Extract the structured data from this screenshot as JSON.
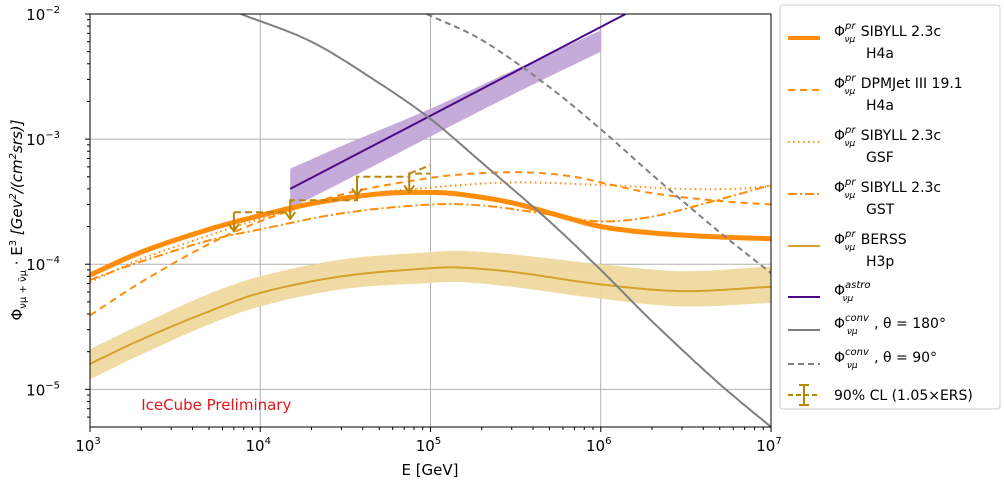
{
  "chart_data": {
    "type": "line",
    "title": "",
    "xlabel": "E [GeV]",
    "ylabel": {
      "prefix": "Φ",
      "sub": "νμ + ν̄μ",
      "mid": " · E",
      "sup": "3",
      "unit_open": " [Gev",
      "unit_sup": "2",
      "unit_close": "/(cm",
      "unit_sup2": "2",
      "unit_end": "srs)]"
    },
    "x_scale": "log",
    "y_scale": "log",
    "xlim": [
      1000,
      10000000
    ],
    "ylim": [
      5e-06,
      0.01
    ],
    "grid": true,
    "legend_position": "outside-right",
    "x_ticks": [
      {
        "value": 1000,
        "base": "10",
        "exp": "3"
      },
      {
        "value": 10000,
        "base": "10",
        "exp": "4"
      },
      {
        "value": 100000,
        "base": "10",
        "exp": "5"
      },
      {
        "value": 1000000,
        "base": "10",
        "exp": "6"
      },
      {
        "value": 10000000,
        "base": "10",
        "exp": "7"
      }
    ],
    "y_ticks": [
      {
        "value": 1e-05,
        "base": "10",
        "exp": "−5"
      },
      {
        "value": 0.0001,
        "base": "10",
        "exp": "−4"
      },
      {
        "value": 0.001,
        "base": "10",
        "exp": "−3"
      },
      {
        "value": 0.01,
        "base": "10",
        "exp": "−2"
      }
    ],
    "annotation": {
      "text": "IceCube Preliminary",
      "x": 2000,
      "y": 7.5e-06,
      "color": "#e8141b"
    },
    "bands": [
      {
        "id": "berss-band",
        "color": "#f0d9a0",
        "x": [
          1000,
          2000,
          5000,
          10000,
          30000,
          100000,
          150000,
          300000,
          1000000,
          3000000,
          10000000
        ],
        "lower": [
          1.2e-05,
          1.9e-05,
          3.3e-05,
          4.6e-05,
          6.3e-05,
          7.1e-05,
          7.2e-05,
          6.6e-05,
          5.3e-05,
          4.6e-05,
          4.9e-05
        ],
        "upper": [
          2.1e-05,
          3.3e-05,
          5.8e-05,
          8e-05,
          0.000109,
          0.000125,
          0.000128,
          0.00012,
          0.0001,
          8.8e-05,
          9.6e-05
        ]
      },
      {
        "id": "astro-band",
        "color": "#c3a6d8",
        "x": [
          15000,
          30000,
          100000,
          300000,
          1000000
        ],
        "lower": [
          0.00028,
          0.00045,
          0.00105,
          0.00225,
          0.005
        ],
        "upper": [
          0.00058,
          0.00088,
          0.00175,
          0.0035,
          0.0074
        ]
      }
    ],
    "series": [
      {
        "id": "sibyll-h4a",
        "name": "SIBYLL 2.3c",
        "name2": "H4a",
        "legend_label": "Φ",
        "legend_sup": "pr",
        "legend_sub": "νμ",
        "color": "#ff8c0a",
        "width": 5,
        "dash": "",
        "x": [
          1000,
          2000,
          5000,
          10000,
          20000,
          50000,
          100000,
          150000,
          300000,
          600000,
          1000000,
          2000000,
          5000000,
          10000000
        ],
        "y": [
          8.2e-05,
          0.000125,
          0.00019,
          0.000245,
          0.000305,
          0.000365,
          0.000375,
          0.000362,
          0.00031,
          0.00024,
          0.0002,
          0.000178,
          0.000165,
          0.00016
        ]
      },
      {
        "id": "dpmjet-h4a",
        "name": "DPMJet III 19.1",
        "name2": "H4a",
        "legend_label": "Φ",
        "legend_sup": "pr",
        "legend_sub": "νμ",
        "color": "#ff8c0a",
        "width": 2,
        "dash": "7,5",
        "x": [
          1000,
          2000,
          5000,
          10000,
          30000,
          100000,
          200000,
          400000,
          700000,
          1000000,
          2000000,
          5000000,
          10000000
        ],
        "y": [
          3.9e-05,
          7.2e-05,
          0.000145,
          0.00022,
          0.00036,
          0.00049,
          0.000535,
          0.00054,
          0.0005,
          0.00045,
          0.00037,
          0.00032,
          0.0003
        ]
      },
      {
        "id": "sibyll-gsf",
        "name": "SIBYLL 2.3c",
        "name2": "GSF",
        "legend_label": "Φ",
        "legend_sup": "pr",
        "legend_sub": "νμ",
        "color": "#ff8c0a",
        "width": 2,
        "dash": "1.5,3.5",
        "x": [
          1000,
          2000,
          5000,
          10000,
          30000,
          100000,
          300000,
          1000000,
          3000000,
          6000000,
          10000000
        ],
        "y": [
          7.2e-05,
          0.00011,
          0.00017,
          0.00023,
          0.00034,
          0.00041,
          0.00045,
          0.00043,
          0.0004,
          0.0004,
          0.00042
        ]
      },
      {
        "id": "sibyll-gst",
        "name": "SIBYLL 2.3c",
        "name2": "GST",
        "legend_label": "Φ",
        "legend_sup": "pr",
        "legend_sub": "νμ",
        "color": "#ff8c0a",
        "width": 2,
        "dash": "9,3,2,3",
        "x": [
          1000,
          2000,
          5000,
          10000,
          30000,
          100000,
          200000,
          500000,
          1000000,
          2000000,
          5000000,
          10000000
        ],
        "y": [
          7.5e-05,
          0.000105,
          0.000155,
          0.00019,
          0.000255,
          0.0003,
          0.000295,
          0.00025,
          0.00022,
          0.00024,
          0.00033,
          0.00043
        ]
      },
      {
        "id": "berss-h3p",
        "name": "BERSS",
        "name2": "H3p",
        "legend_label": "Φ",
        "legend_sup": "pr",
        "legend_sub": "νμ",
        "color": "#d4a22b",
        "width": 2,
        "dash": "",
        "x": [
          1000,
          2000,
          5000,
          10000,
          30000,
          100000,
          150000,
          300000,
          1000000,
          3000000,
          10000000
        ],
        "y": [
          1.6e-05,
          2.5e-05,
          4.2e-05,
          5.9e-05,
          8e-05,
          9.3e-05,
          9.4e-05,
          8.7e-05,
          6.9e-05,
          6.1e-05,
          6.6e-05
        ]
      },
      {
        "id": "astro",
        "name": "",
        "name2": "",
        "legend_label": "Φ",
        "legend_sup": "astro",
        "legend_sub": "νμ",
        "color": "#4b0a8a",
        "width": 2,
        "dash": "",
        "x": [
          15000,
          1400000
        ],
        "y": [
          0.0004,
          0.01
        ]
      },
      {
        "id": "conv-180",
        "name": ", θ = 180°",
        "name2": "",
        "legend_label": "Φ",
        "legend_sup": "conv",
        "legend_sub": "νμ",
        "color": "#808080",
        "width": 2,
        "dash": "",
        "x": [
          7700,
          20000,
          50000,
          100000,
          200000,
          500000,
          1000000,
          2000000,
          5000000,
          10000000
        ],
        "y": [
          0.01,
          0.006,
          0.0028,
          0.00145,
          0.00065,
          0.00022,
          9e-05,
          3.5e-05,
          1.1e-05,
          5e-06
        ]
      },
      {
        "id": "conv-90",
        "name": ", θ = 90°",
        "name2": "",
        "legend_label": "Φ",
        "legend_sup": "conv",
        "legend_sub": "νμ",
        "color": "#808080",
        "width": 2,
        "dash": "6,4",
        "x": [
          95000,
          200000,
          500000,
          1000000,
          2000000,
          5000000,
          10000000
        ],
        "y": [
          0.01,
          0.0062,
          0.0026,
          0.0012,
          0.00052,
          0.00018,
          8.5e-05
        ]
      }
    ],
    "limits": {
      "id": "cl90",
      "name": "90% CL (1.05×ERS)",
      "color": "#b8860b",
      "steps": [
        {
          "x0": 7000,
          "x1": 15000,
          "y": 0.00026,
          "arrow_x": 7000
        },
        {
          "x0": 15000,
          "x1": 37000,
          "y": 0.000325,
          "arrow_x": 15000
        },
        {
          "x0": 37000,
          "x1": 75000,
          "y": 0.0005,
          "arrow_x": 37000
        },
        {
          "x0": 75000,
          "x1": 100000,
          "y": 0.00053,
          "arrow_x": 75000
        }
      ],
      "arrow_drop_factor": 0.72,
      "tail": {
        "x": [
          75000,
          100000
        ],
        "y": [
          0.00053,
          0.00062
        ]
      }
    }
  }
}
